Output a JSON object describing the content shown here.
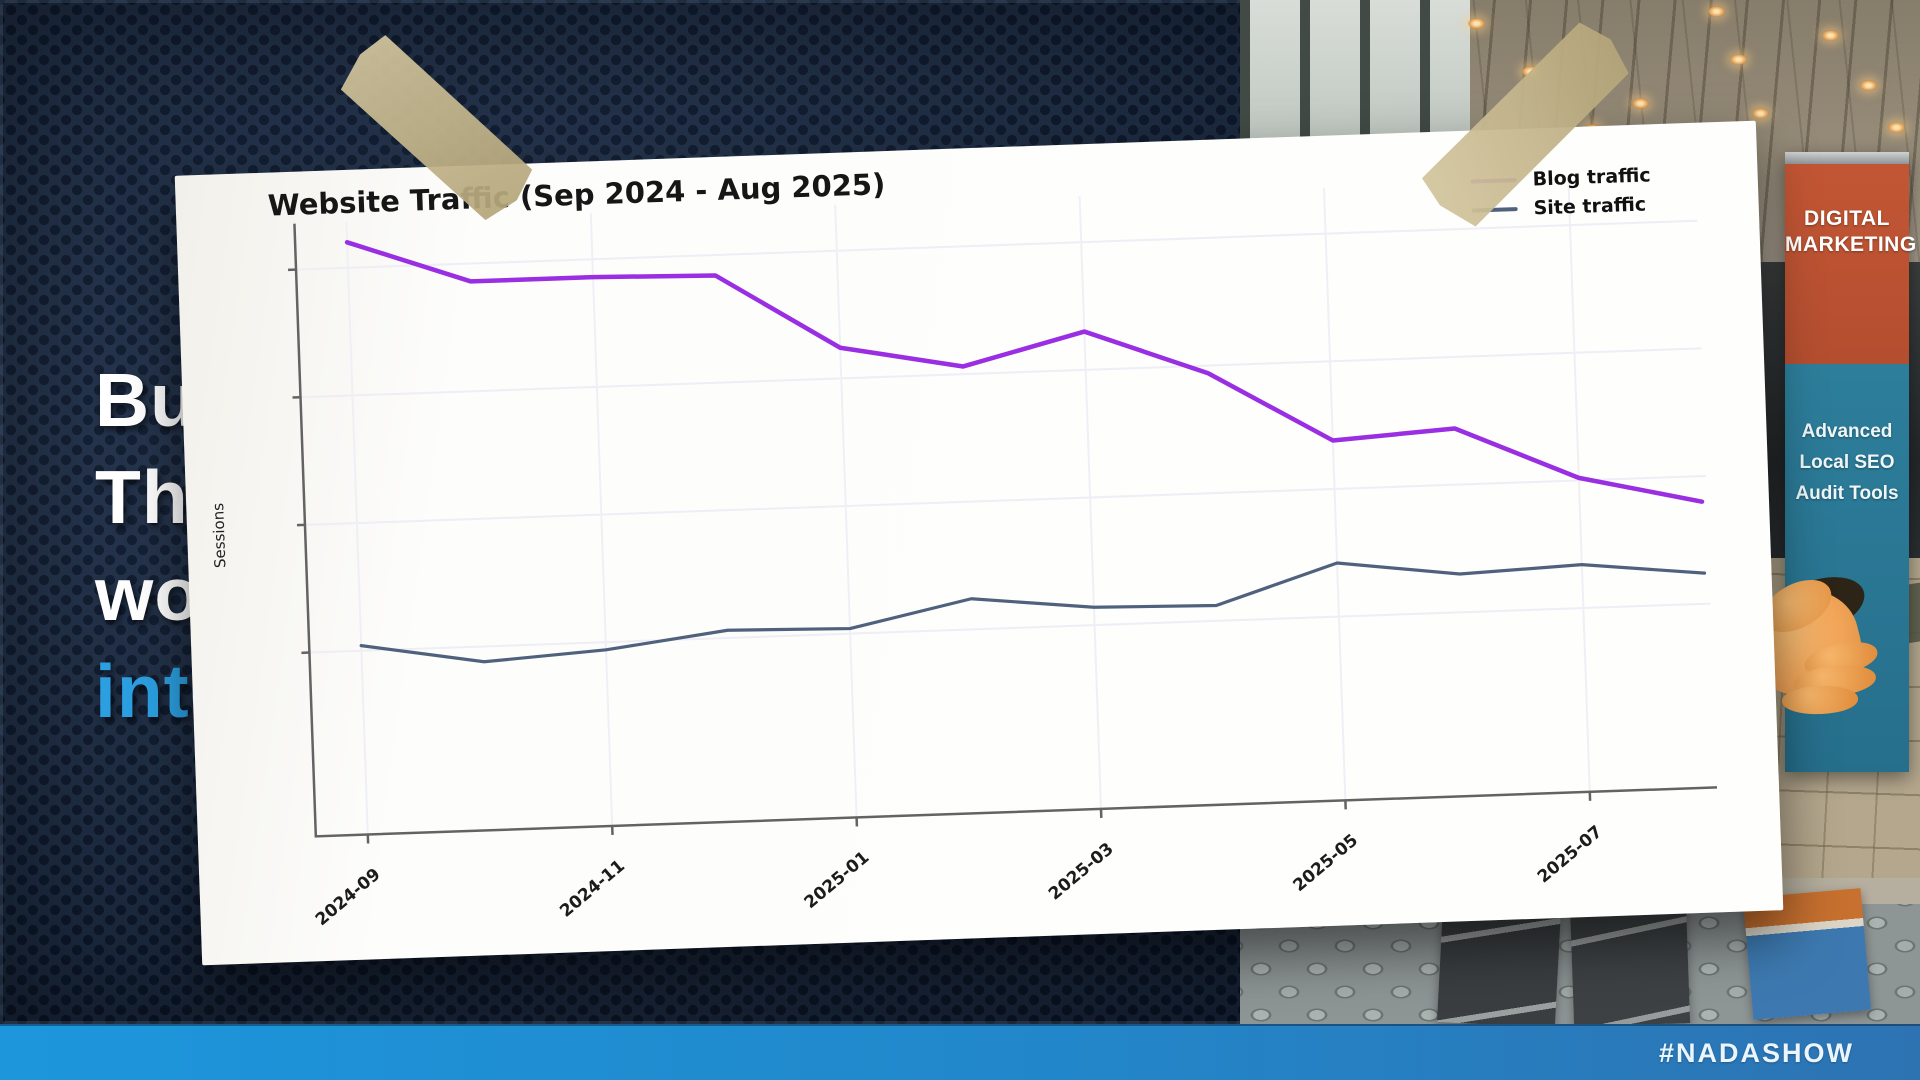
{
  "slide": {
    "left_text_lines": [
      "Bu",
      "The",
      "wo",
      "inte"
    ],
    "highlight_line_index": 3,
    "highlight_color": "#2b9fe0",
    "hashtag": "#NADASHOW",
    "background_color": "#1e3049",
    "bar_gradient": [
      "#1d96dc",
      "#2d73b2"
    ]
  },
  "banner": {
    "top_text": "DIGITAL MARKETING",
    "top_color": "#c25634",
    "bottom_lines": [
      "Advanced",
      "Local SEO",
      "Audit Tools"
    ],
    "bottom_color": "#2d7e9b"
  },
  "chart_data": {
    "type": "line",
    "title": "Website Traffic (Sep 2024 - Aug 2025)",
    "xlabel": "",
    "ylabel": "Sessions",
    "x": [
      "2024-09",
      "2024-10",
      "2024-11",
      "2024-12",
      "2025-01",
      "2025-02",
      "2025-03",
      "2025-04",
      "2025-05",
      "2025-06",
      "2025-07",
      "2025-08"
    ],
    "x_tick_labels": [
      "2024-09",
      "2024-11",
      "2025-01",
      "2025-03",
      "2025-05",
      "2025-07"
    ],
    "y_axis_unlabeled": true,
    "values_scale": "relative units (no y tick labels shown); first blog point normalized to 100",
    "ylim": [
      -16,
      104
    ],
    "y_tick_positions": [
      95,
      70,
      45,
      20
    ],
    "grid": "faint",
    "legend_position": "upper right",
    "series": [
      {
        "name": "Blog traffic",
        "color": "#9a2ee2",
        "values": [
          100,
          91.5,
          91.5,
          91,
          76,
          71.5,
          77.5,
          68.5,
          54.5,
          56,
          45.5,
          40
        ]
      },
      {
        "name": "Site traffic",
        "color": "#50617d",
        "values": [
          21,
          17,
          18.5,
          21.5,
          21,
          26,
          23.5,
          23,
          30.5,
          27.5,
          28.5,
          26
        ]
      }
    ]
  }
}
